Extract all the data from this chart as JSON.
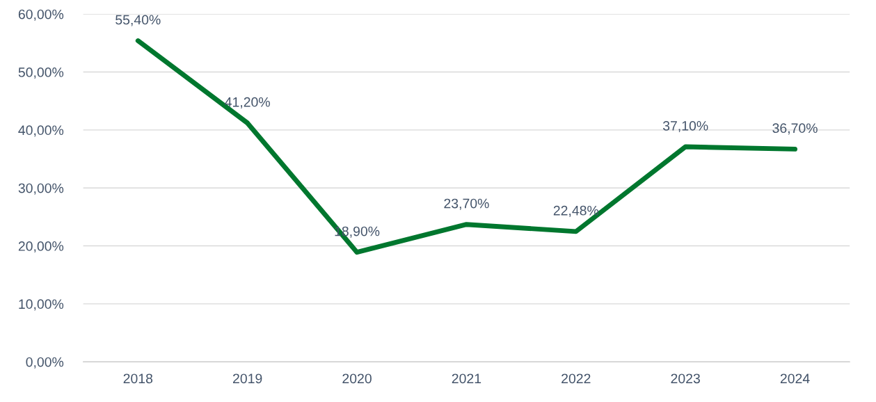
{
  "chart_data": {
    "type": "line",
    "categories": [
      "2018",
      "2019",
      "2020",
      "2021",
      "2022",
      "2023",
      "2024"
    ],
    "series": [
      {
        "color": "#00772e",
        "values": [
          55.4,
          41.2,
          18.9,
          23.7,
          22.48,
          37.1,
          36.7
        ],
        "value_labels": [
          "55,40%",
          "41,20%",
          "18,90%",
          "23,70%",
          "22,48%",
          "37,10%",
          "36,70%"
        ]
      }
    ],
    "ylim": [
      0,
      60
    ],
    "yticks": [
      {
        "value": 0,
        "label": "0,00%"
      },
      {
        "value": 10,
        "label": "10,00%"
      },
      {
        "value": 20,
        "label": "20,00%"
      },
      {
        "value": 30,
        "label": "30,00%"
      },
      {
        "value": 40,
        "label": "40,00%"
      },
      {
        "value": 50,
        "label": "50,00%"
      },
      {
        "value": 60,
        "label": "60,00%"
      }
    ],
    "grid": "y",
    "marker": "none",
    "line_style": "solid",
    "legend": false
  }
}
